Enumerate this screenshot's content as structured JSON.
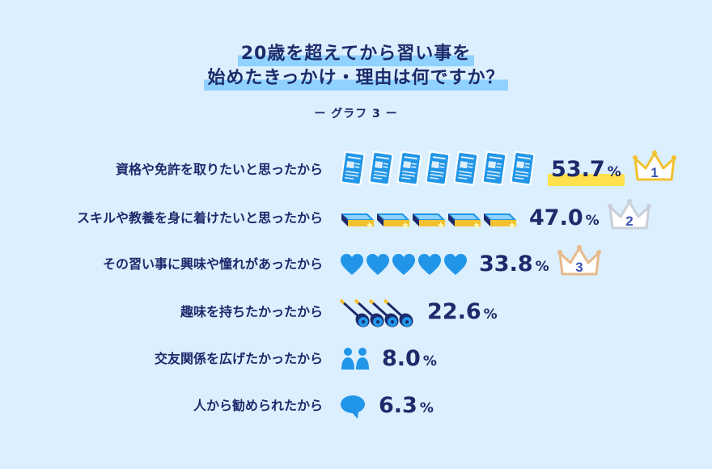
{
  "title": {
    "line1": "20歳を超えてから習い事を",
    "line2": "始めたきっかけ・理由は何ですか？"
  },
  "subtitle": "ー グラフ 3 ー",
  "percent_unit": "%",
  "colors": {
    "background": "#dcefff",
    "text": "#1d2a6b",
    "accent": "#2196e8",
    "title_highlight": "#8fd2ff",
    "first_highlight": "#ffe14d",
    "gold": "#f2c12e",
    "silver": "#c9cfd8",
    "bronze": "#e8b98a"
  },
  "rank_labels": [
    "1",
    "2",
    "3"
  ],
  "chart_data": {
    "type": "bar",
    "title": "20歳を超えてから習い事を始めたきっかけ・理由は何ですか？",
    "subtitle": "ー グラフ 3 ー",
    "categories": [
      "資格や免許を取りたいと思ったから",
      "スキルや教養を身に着けたいと思ったから",
      "その習い事に興味や憧れがあったから",
      "趣味を持ちたかったから",
      "交友関係を広げたかったから",
      "人から勧められたから"
    ],
    "values": [
      53.7,
      47.0,
      33.8,
      22.6,
      8.0,
      6.3
    ],
    "value_labels": [
      "53.7",
      "47.0",
      "33.8",
      "22.6",
      "8.0",
      "6.3"
    ],
    "icons": [
      "certificate-icon",
      "book-icon",
      "heart-icon",
      "guitar-icon",
      "people-icon",
      "speech-bubble-icon"
    ],
    "icon_counts": [
      7,
      5,
      5,
      4,
      1,
      1
    ],
    "ranks": [
      1,
      2,
      3,
      null,
      null,
      null
    ],
    "unit": "%"
  }
}
